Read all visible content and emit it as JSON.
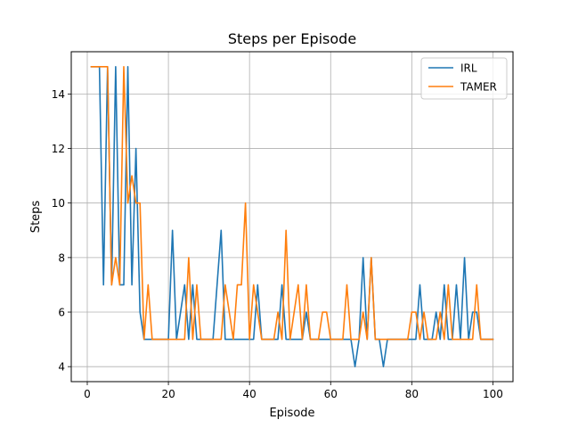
{
  "chart_data": {
    "type": "line",
    "title": "Steps per Episode",
    "xlabel": "Episode",
    "ylabel": "Steps",
    "xlim": [
      -3.95,
      104.95
    ],
    "ylim": [
      3.45,
      15.55
    ],
    "xticks": [
      0,
      20,
      40,
      60,
      80,
      100
    ],
    "yticks": [
      4,
      6,
      8,
      10,
      12,
      14
    ],
    "grid": true,
    "legend_position": "top-right",
    "x": [
      1,
      2,
      3,
      4,
      5,
      6,
      7,
      8,
      9,
      10,
      11,
      12,
      13,
      14,
      15,
      16,
      17,
      18,
      19,
      20,
      21,
      22,
      23,
      24,
      25,
      26,
      27,
      28,
      29,
      30,
      31,
      32,
      33,
      34,
      35,
      36,
      37,
      38,
      39,
      40,
      41,
      42,
      43,
      44,
      45,
      46,
      47,
      48,
      49,
      50,
      51,
      52,
      53,
      54,
      55,
      56,
      57,
      58,
      59,
      60,
      61,
      62,
      63,
      64,
      65,
      66,
      67,
      68,
      69,
      70,
      71,
      72,
      73,
      74,
      75,
      76,
      77,
      78,
      79,
      80,
      81,
      82,
      83,
      84,
      85,
      86,
      87,
      88,
      89,
      90,
      91,
      92,
      93,
      94,
      95,
      96,
      97,
      98,
      99,
      100
    ],
    "series": [
      {
        "name": "IRL",
        "color": "#1f77b4",
        "values": [
          15,
          15,
          15,
          7,
          15,
          7,
          15,
          7,
          7,
          15,
          7,
          12,
          6,
          5,
          5,
          5,
          5,
          5,
          5,
          5,
          9,
          5,
          6,
          7,
          5,
          7,
          5,
          5,
          5,
          5,
          5,
          7,
          9,
          5,
          5,
          5,
          5,
          5,
          5,
          5,
          5,
          7,
          5,
          5,
          5,
          5,
          5,
          7,
          5,
          5,
          5,
          5,
          5,
          6,
          5,
          5,
          5,
          5,
          5,
          5,
          5,
          5,
          5,
          5,
          5,
          4,
          5,
          8,
          5,
          8,
          5,
          5,
          4,
          5,
          5,
          5,
          5,
          5,
          5,
          5,
          5,
          7,
          5,
          5,
          5,
          6,
          5,
          7,
          5,
          5,
          7,
          5,
          8,
          5,
          6,
          6,
          5,
          5,
          5,
          5
        ]
      },
      {
        "name": "TAMER",
        "color": "#ff7f0e",
        "values": [
          15,
          15,
          15,
          15,
          15,
          7,
          8,
          7,
          15,
          10,
          11,
          10,
          10,
          5,
          7,
          5,
          5,
          5,
          5,
          5,
          5,
          5,
          5,
          5,
          8,
          5,
          7,
          5,
          5,
          5,
          5,
          5,
          5,
          7,
          6,
          5,
          7,
          7,
          10,
          5,
          7,
          6,
          5,
          5,
          5,
          5,
          6,
          5,
          9,
          5,
          6,
          7,
          5,
          7,
          5,
          5,
          5,
          6,
          6,
          5,
          5,
          5,
          5,
          7,
          5,
          5,
          5,
          6,
          5,
          8,
          5,
          5,
          5,
          5,
          5,
          5,
          5,
          5,
          5,
          6,
          6,
          5,
          6,
          5,
          5,
          5,
          6,
          5,
          7,
          5,
          5,
          5,
          5,
          5,
          5,
          7,
          5,
          5,
          5,
          5
        ]
      }
    ]
  }
}
